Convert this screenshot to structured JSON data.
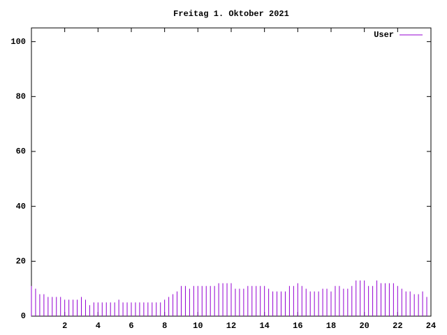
{
  "chart_data": {
    "type": "impulses",
    "title": "Freitag 1. Oktober 2021",
    "x": [
      0,
      0.25,
      0.5,
      0.75,
      1,
      1.25,
      1.5,
      1.75,
      2,
      2.25,
      2.5,
      2.75,
      3,
      3.25,
      3.5,
      3.75,
      4,
      4.25,
      4.5,
      4.75,
      5,
      5.25,
      5.5,
      5.75,
      6,
      6.25,
      6.5,
      6.75,
      7,
      7.25,
      7.5,
      7.75,
      8,
      8.25,
      8.5,
      8.75,
      9,
      9.25,
      9.5,
      9.75,
      10,
      10.25,
      10.5,
      10.75,
      11,
      11.25,
      11.5,
      11.75,
      12,
      12.25,
      12.5,
      12.75,
      13,
      13.25,
      13.5,
      13.75,
      14,
      14.25,
      14.5,
      14.75,
      15,
      15.25,
      15.5,
      15.75,
      16,
      16.25,
      16.5,
      16.75,
      17,
      17.25,
      17.5,
      17.75,
      18,
      18.25,
      18.5,
      18.75,
      19,
      19.25,
      19.5,
      19.75,
      20,
      20.25,
      20.5,
      20.75,
      21,
      21.25,
      21.5,
      21.75,
      22,
      22.25,
      22.5,
      22.75,
      23,
      23.25,
      23.5,
      23.75
    ],
    "series": [
      {
        "name": "User",
        "color": "#9400d3",
        "values": [
          11,
          10,
          8,
          8,
          7,
          7,
          7,
          7,
          6,
          6,
          6,
          6,
          7,
          6,
          4,
          5,
          5,
          5,
          5,
          5,
          5,
          6,
          5,
          5,
          5,
          5,
          5,
          5,
          5,
          5,
          5,
          5,
          6,
          7,
          8,
          9,
          11,
          11,
          10,
          11,
          11,
          11,
          11,
          11,
          11,
          12,
          12,
          12,
          12,
          10,
          10,
          10,
          11,
          11,
          11,
          11,
          11,
          10,
          9,
          9,
          9,
          9,
          11,
          11,
          12,
          11,
          10,
          9,
          9,
          9,
          10,
          10,
          9,
          11,
          11,
          10,
          10,
          11,
          13,
          13,
          13,
          11,
          11,
          13,
          12,
          12,
          12,
          12,
          11,
          10,
          9,
          9,
          8,
          8,
          9,
          7
        ]
      }
    ],
    "xlim": [
      0,
      24
    ],
    "xticks": [
      2,
      4,
      6,
      8,
      10,
      12,
      14,
      16,
      18,
      20,
      22,
      24
    ],
    "ylim": [
      0,
      105
    ],
    "yticks": [
      0,
      20,
      40,
      60,
      80,
      100
    ],
    "legend": "top-right"
  }
}
